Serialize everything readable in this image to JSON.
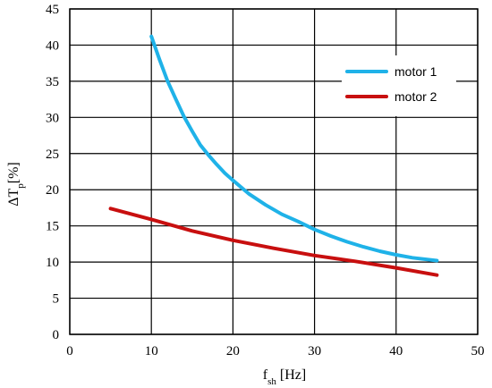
{
  "chart_data": {
    "type": "line",
    "title": "",
    "xlabel": {
      "base": "f",
      "sub": "sh",
      "rest": " [Hz]"
    },
    "ylabel": {
      "base": "ΔT",
      "sub": "p",
      "rest": "[%]"
    },
    "xlim": [
      0,
      50
    ],
    "ylim": [
      0,
      45
    ],
    "xticks": [
      "0",
      "10",
      "20",
      "30",
      "40",
      "50"
    ],
    "yticks": [
      "0",
      "5",
      "10",
      "15",
      "20",
      "25",
      "30",
      "35",
      "40",
      "45"
    ],
    "grid": true,
    "legend_position": "top-right",
    "series": [
      {
        "name": "motor 1",
        "color": "#1fb2e8",
        "x": [
          10,
          11,
          12,
          13,
          14,
          15,
          16,
          17,
          18,
          19,
          20,
          22,
          24,
          26,
          28,
          30,
          32,
          34,
          36,
          38,
          40,
          42,
          45
        ],
        "y": [
          41.2,
          38.0,
          35.0,
          32.5,
          30.1,
          28.1,
          26.2,
          24.8,
          23.5,
          22.3,
          21.3,
          19.4,
          17.9,
          16.6,
          15.6,
          14.5,
          13.6,
          12.8,
          12.1,
          11.5,
          11.0,
          10.6,
          10.2
        ]
      },
      {
        "name": "motor 2",
        "color": "#c80f0f",
        "x": [
          5,
          10,
          15,
          20,
          25,
          30,
          35,
          40,
          45
        ],
        "y": [
          17.4,
          15.9,
          14.3,
          13.0,
          11.9,
          10.9,
          10.1,
          9.2,
          8.2
        ]
      }
    ]
  }
}
